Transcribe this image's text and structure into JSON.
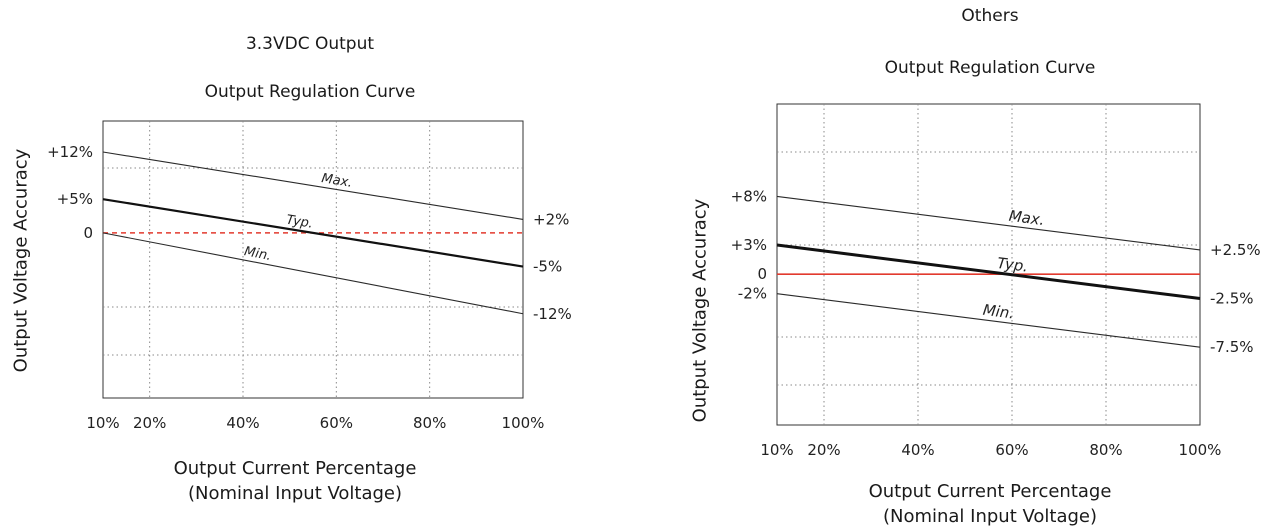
{
  "chart_data": [
    {
      "type": "line",
      "title": "Output Regulation Curve",
      "subtitle": "3.3VDC Output",
      "xlabel": "Output Current Percentage",
      "xlabel2": "(Nominal Input Voltage)",
      "ylabel": "Output Voltage Accuracy",
      "x_ticks": [
        "10%",
        "20%",
        "40%",
        "60%",
        "80%",
        "100%"
      ],
      "x_tick_values": [
        10,
        20,
        40,
        60,
        80,
        100
      ],
      "xlim": [
        10,
        100
      ],
      "ylim": [
        -24.5,
        16.6
      ],
      "y_ticks_left": [
        "+12%",
        "+5%",
        "0"
      ],
      "y_tick_left_values": [
        12,
        5,
        0
      ],
      "y_ticks_right": [
        "+2%",
        "-5%",
        "-12%"
      ],
      "y_tick_right_values": [
        2,
        -5,
        -12
      ],
      "series": [
        {
          "name": "Max.",
          "x": [
            10,
            100
          ],
          "y": [
            12,
            2
          ],
          "width": "thin"
        },
        {
          "name": "Typ.",
          "x": [
            10,
            100
          ],
          "y": [
            5,
            -5
          ],
          "width": "bold"
        },
        {
          "name": "Min.",
          "x": [
            10,
            100
          ],
          "y": [
            0,
            -12
          ],
          "width": "thin"
        }
      ],
      "reference_line": {
        "y": 0,
        "color": "#e23a2e",
        "style": "dashed"
      },
      "grid": true
    },
    {
      "type": "line",
      "title": "Output Regulation Curve",
      "subtitle": "Others",
      "xlabel": "Output Current Percentage",
      "xlabel2": "(Nominal Input Voltage)",
      "ylabel": "Output Voltage Accuracy",
      "x_ticks": [
        "10%",
        "20%",
        "40%",
        "60%",
        "80%",
        "100%"
      ],
      "x_tick_values": [
        10,
        20,
        40,
        60,
        80,
        100
      ],
      "xlim": [
        10,
        100
      ],
      "ylim": [
        -15.5,
        17.5
      ],
      "y_ticks_left": [
        "+8%",
        "+3%",
        "0",
        "-2%"
      ],
      "y_tick_left_values": [
        8,
        3,
        0,
        -2
      ],
      "y_ticks_right": [
        "+2.5%",
        "-2.5%",
        "-7.5%"
      ],
      "y_tick_right_values": [
        2.5,
        -2.5,
        -7.5
      ],
      "series": [
        {
          "name": "Max.",
          "x": [
            10,
            100
          ],
          "y": [
            8,
            2.5
          ],
          "width": "thin"
        },
        {
          "name": "Typ.",
          "x": [
            10,
            100
          ],
          "y": [
            3,
            -2.5
          ],
          "width": "bold"
        },
        {
          "name": "Min.",
          "x": [
            10,
            100
          ],
          "y": [
            -2,
            -7.5
          ],
          "width": "thin"
        }
      ],
      "reference_line": {
        "y": 0,
        "color": "#e23a2e",
        "style": "solid"
      },
      "grid": true
    }
  ]
}
